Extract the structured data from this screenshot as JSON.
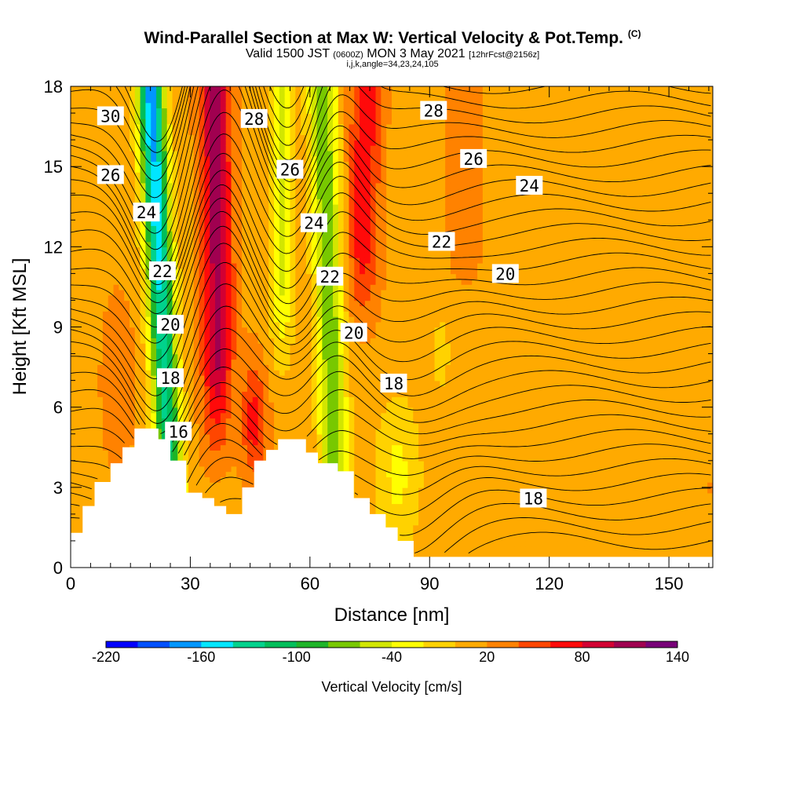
{
  "title": {
    "main": "Wind-Parallel Section at Max W: Vertical Velocity & Pot.Temp.",
    "copyright": "(C)",
    "valid_line_a": "Valid 1500 JST",
    "valid_line_b": "(0600Z)",
    "valid_line_c": "MON 3 May 2021",
    "valid_line_d": "[12hrFcst@2156z]",
    "indices": "i,j,k,angle=34,23,24,105"
  },
  "chart_data": {
    "type": "heatmap",
    "title": "Wind-Parallel Section at Max W: Vertical Velocity & Pot.Temp.",
    "xlabel": "Distance [nm]",
    "ylabel": "Height [Kft MSL]",
    "xlim": [
      0,
      161
    ],
    "ylim": [
      0,
      18
    ],
    "xticks": [
      "0",
      "30",
      "60",
      "90",
      "120",
      "150"
    ],
    "yticks": [
      "0",
      "3",
      "6",
      "9",
      "12",
      "15",
      "18"
    ],
    "colorbar": {
      "label": "Vertical Velocity [cm/s]",
      "ticks": [
        "-220",
        "-160",
        "-100",
        "-40",
        "20",
        "80",
        "140"
      ],
      "min": -220,
      "max": 140,
      "step": 20,
      "colors": [
        "#0000ff",
        "#0050ff",
        "#0096ff",
        "#00e6ff",
        "#00d28c",
        "#00be5a",
        "#1eb428",
        "#78c800",
        "#d2e600",
        "#ffff00",
        "#ffd200",
        "#ffaa00",
        "#ff8200",
        "#ff4600",
        "#ff0a0a",
        "#d20032",
        "#a00050",
        "#780078"
      ]
    },
    "velocity_bands": [
      {
        "name": "downdraft",
        "min_velocity": -170,
        "x_top": 20,
        "x_bottom": 26
      },
      {
        "name": "updraft",
        "max_velocity": 110,
        "x_top": 36,
        "x_bottom": 36
      },
      {
        "name": "downdraft",
        "min_velocity": -90,
        "x_top": 63,
        "x_bottom": 67
      },
      {
        "name": "updraft",
        "max_velocity": 50,
        "x_top": 74,
        "x_bottom": 72
      }
    ],
    "terrain_profile": [
      [
        0,
        1.3
      ],
      [
        3,
        2.3
      ],
      [
        6,
        3.2
      ],
      [
        10,
        3.9
      ],
      [
        13,
        4.5
      ],
      [
        16,
        5.2
      ],
      [
        22,
        4.8
      ],
      [
        25,
        4.0
      ],
      [
        29,
        2.8
      ],
      [
        33,
        2.6
      ],
      [
        36,
        2.3
      ],
      [
        39,
        2.0
      ],
      [
        43,
        3.0
      ],
      [
        46,
        4.0
      ],
      [
        49,
        4.4
      ],
      [
        52,
        4.8
      ],
      [
        59,
        4.3
      ],
      [
        62,
        3.9
      ],
      [
        67,
        3.6
      ],
      [
        71,
        2.6
      ],
      [
        75,
        2.0
      ],
      [
        79,
        1.5
      ],
      [
        82,
        1.0
      ],
      [
        86,
        0.4
      ],
      [
        161,
        0.4
      ]
    ],
    "theta_contour_labels": [
      {
        "label": "30",
        "x": 10,
        "y": 16.9
      },
      {
        "label": "28",
        "x": 46,
        "y": 16.8
      },
      {
        "label": "28",
        "x": 91,
        "y": 17.1
      },
      {
        "label": "26",
        "x": 10,
        "y": 14.7
      },
      {
        "label": "26",
        "x": 55,
        "y": 14.9
      },
      {
        "label": "26",
        "x": 101,
        "y": 15.3
      },
      {
        "label": "24",
        "x": 19,
        "y": 13.3
      },
      {
        "label": "24",
        "x": 61,
        "y": 12.9
      },
      {
        "label": "24",
        "x": 115,
        "y": 14.3
      },
      {
        "label": "22",
        "x": 23,
        "y": 11.1
      },
      {
        "label": "22",
        "x": 65,
        "y": 10.9
      },
      {
        "label": "22",
        "x": 93,
        "y": 12.2
      },
      {
        "label": "20",
        "x": 25,
        "y": 9.1
      },
      {
        "label": "20",
        "x": 71,
        "y": 8.8
      },
      {
        "label": "20",
        "x": 109,
        "y": 11.0
      },
      {
        "label": "18",
        "x": 25,
        "y": 7.1
      },
      {
        "label": "18",
        "x": 81,
        "y": 6.9
      },
      {
        "label": "18",
        "x": 116,
        "y": 2.6
      },
      {
        "label": "16",
        "x": 27,
        "y": 5.1
      }
    ]
  }
}
